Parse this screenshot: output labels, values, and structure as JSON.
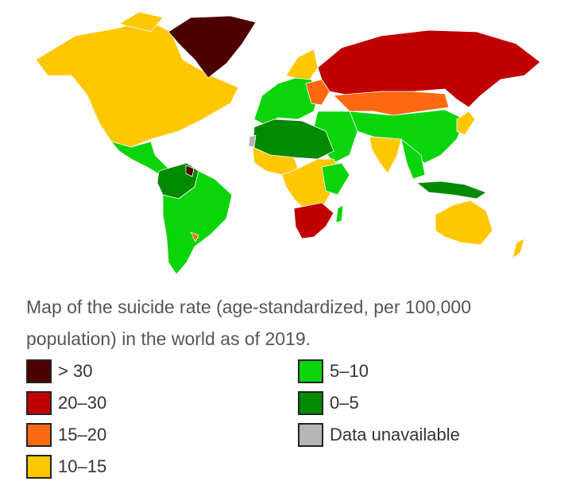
{
  "caption": "Map of the suicide rate (age-standardized, per 100,000 population) in the world as of 2019.",
  "legend": [
    {
      "label": "> 30",
      "color": "#4d0000"
    },
    {
      "label": "20–30",
      "color": "#c00000"
    },
    {
      "label": "15–20",
      "color": "#ff6a10"
    },
    {
      "label": "10–15",
      "color": "#ffc700"
    },
    {
      "label": "5–10",
      "color": "#0ad40a"
    },
    {
      "label": "0–5",
      "color": "#008a00"
    },
    {
      "label": "Data unavailable",
      "color": "#b5b5b5"
    }
  ]
}
